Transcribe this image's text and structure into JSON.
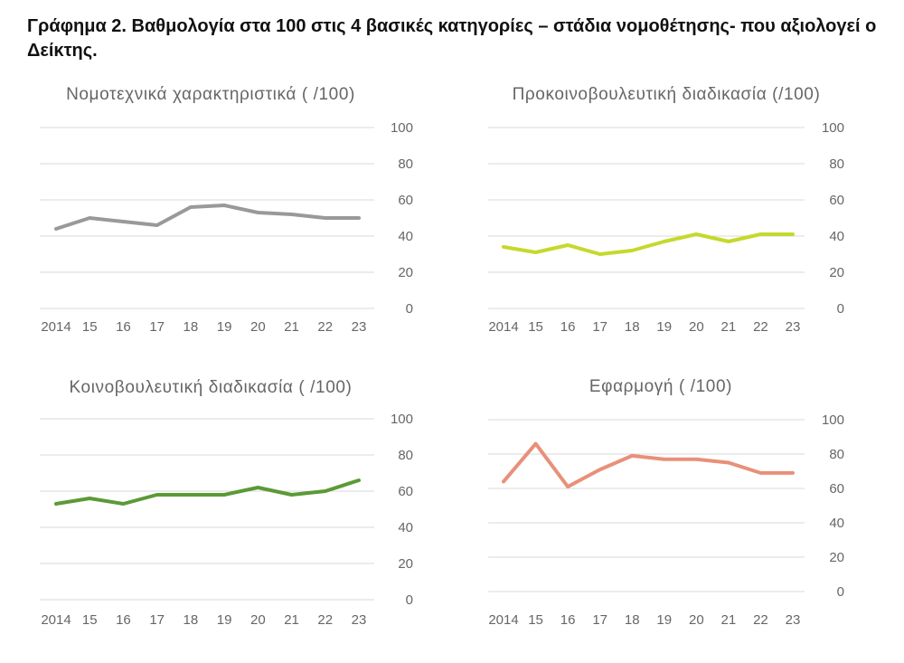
{
  "title": "Γράφημα 2. Βαθμολογία στα 100 στις 4 βασικές κατηγορίες – στάδια νομοθέτησης- που αξιολογεί ο Δείκτης.",
  "chart_data": [
    {
      "type": "line",
      "title": "Νομοτεχνικά χαρακτηριστικά ( /100)",
      "categories": [
        "2014",
        "15",
        "16",
        "17",
        "18",
        "19",
        "20",
        "21",
        "22",
        "23"
      ],
      "series": [
        {
          "color": "#999999",
          "values": [
            44,
            50,
            48,
            46,
            56,
            57,
            53,
            52,
            50,
            50
          ]
        }
      ],
      "yticks": [
        0,
        20,
        40,
        60,
        80,
        100
      ],
      "ylim": [
        0,
        100
      ],
      "y_axis": "right",
      "grid": true
    },
    {
      "type": "line",
      "title": "Προκοινοβουλευτική διαδικασία (/100)",
      "categories": [
        "2014",
        "15",
        "16",
        "17",
        "18",
        "19",
        "20",
        "21",
        "22",
        "23"
      ],
      "series": [
        {
          "color": "#c5d92d",
          "values": [
            34,
            31,
            35,
            30,
            32,
            37,
            41,
            37,
            41,
            41
          ]
        }
      ],
      "yticks": [
        0,
        20,
        40,
        60,
        80,
        100
      ],
      "ylim": [
        0,
        100
      ],
      "y_axis": "right",
      "grid": true
    },
    {
      "type": "line",
      "title": "Κοινοβουλευτική διαδικασία ( /100)",
      "categories": [
        "2014",
        "15",
        "16",
        "17",
        "18",
        "19",
        "20",
        "21",
        "22",
        "23"
      ],
      "series": [
        {
          "color": "#5b9a36",
          "values": [
            53,
            56,
            53,
            58,
            58,
            58,
            62,
            58,
            60,
            66
          ]
        }
      ],
      "yticks": [
        0,
        20,
        40,
        60,
        80,
        100
      ],
      "ylim": [
        0,
        100
      ],
      "y_axis": "right",
      "grid": true
    },
    {
      "type": "line",
      "title": "Εφαρμογή ( /100)",
      "categories": [
        "2014",
        "15",
        "16",
        "17",
        "18",
        "19",
        "20",
        "21",
        "22",
        "23"
      ],
      "series": [
        {
          "color": "#e8907a",
          "values": [
            64,
            86,
            61,
            71,
            79,
            77,
            77,
            75,
            69,
            69
          ]
        }
      ],
      "yticks": [
        0,
        20,
        40,
        60,
        80,
        100
      ],
      "ylim": [
        0,
        100
      ],
      "y_axis": "right",
      "grid": true
    }
  ]
}
